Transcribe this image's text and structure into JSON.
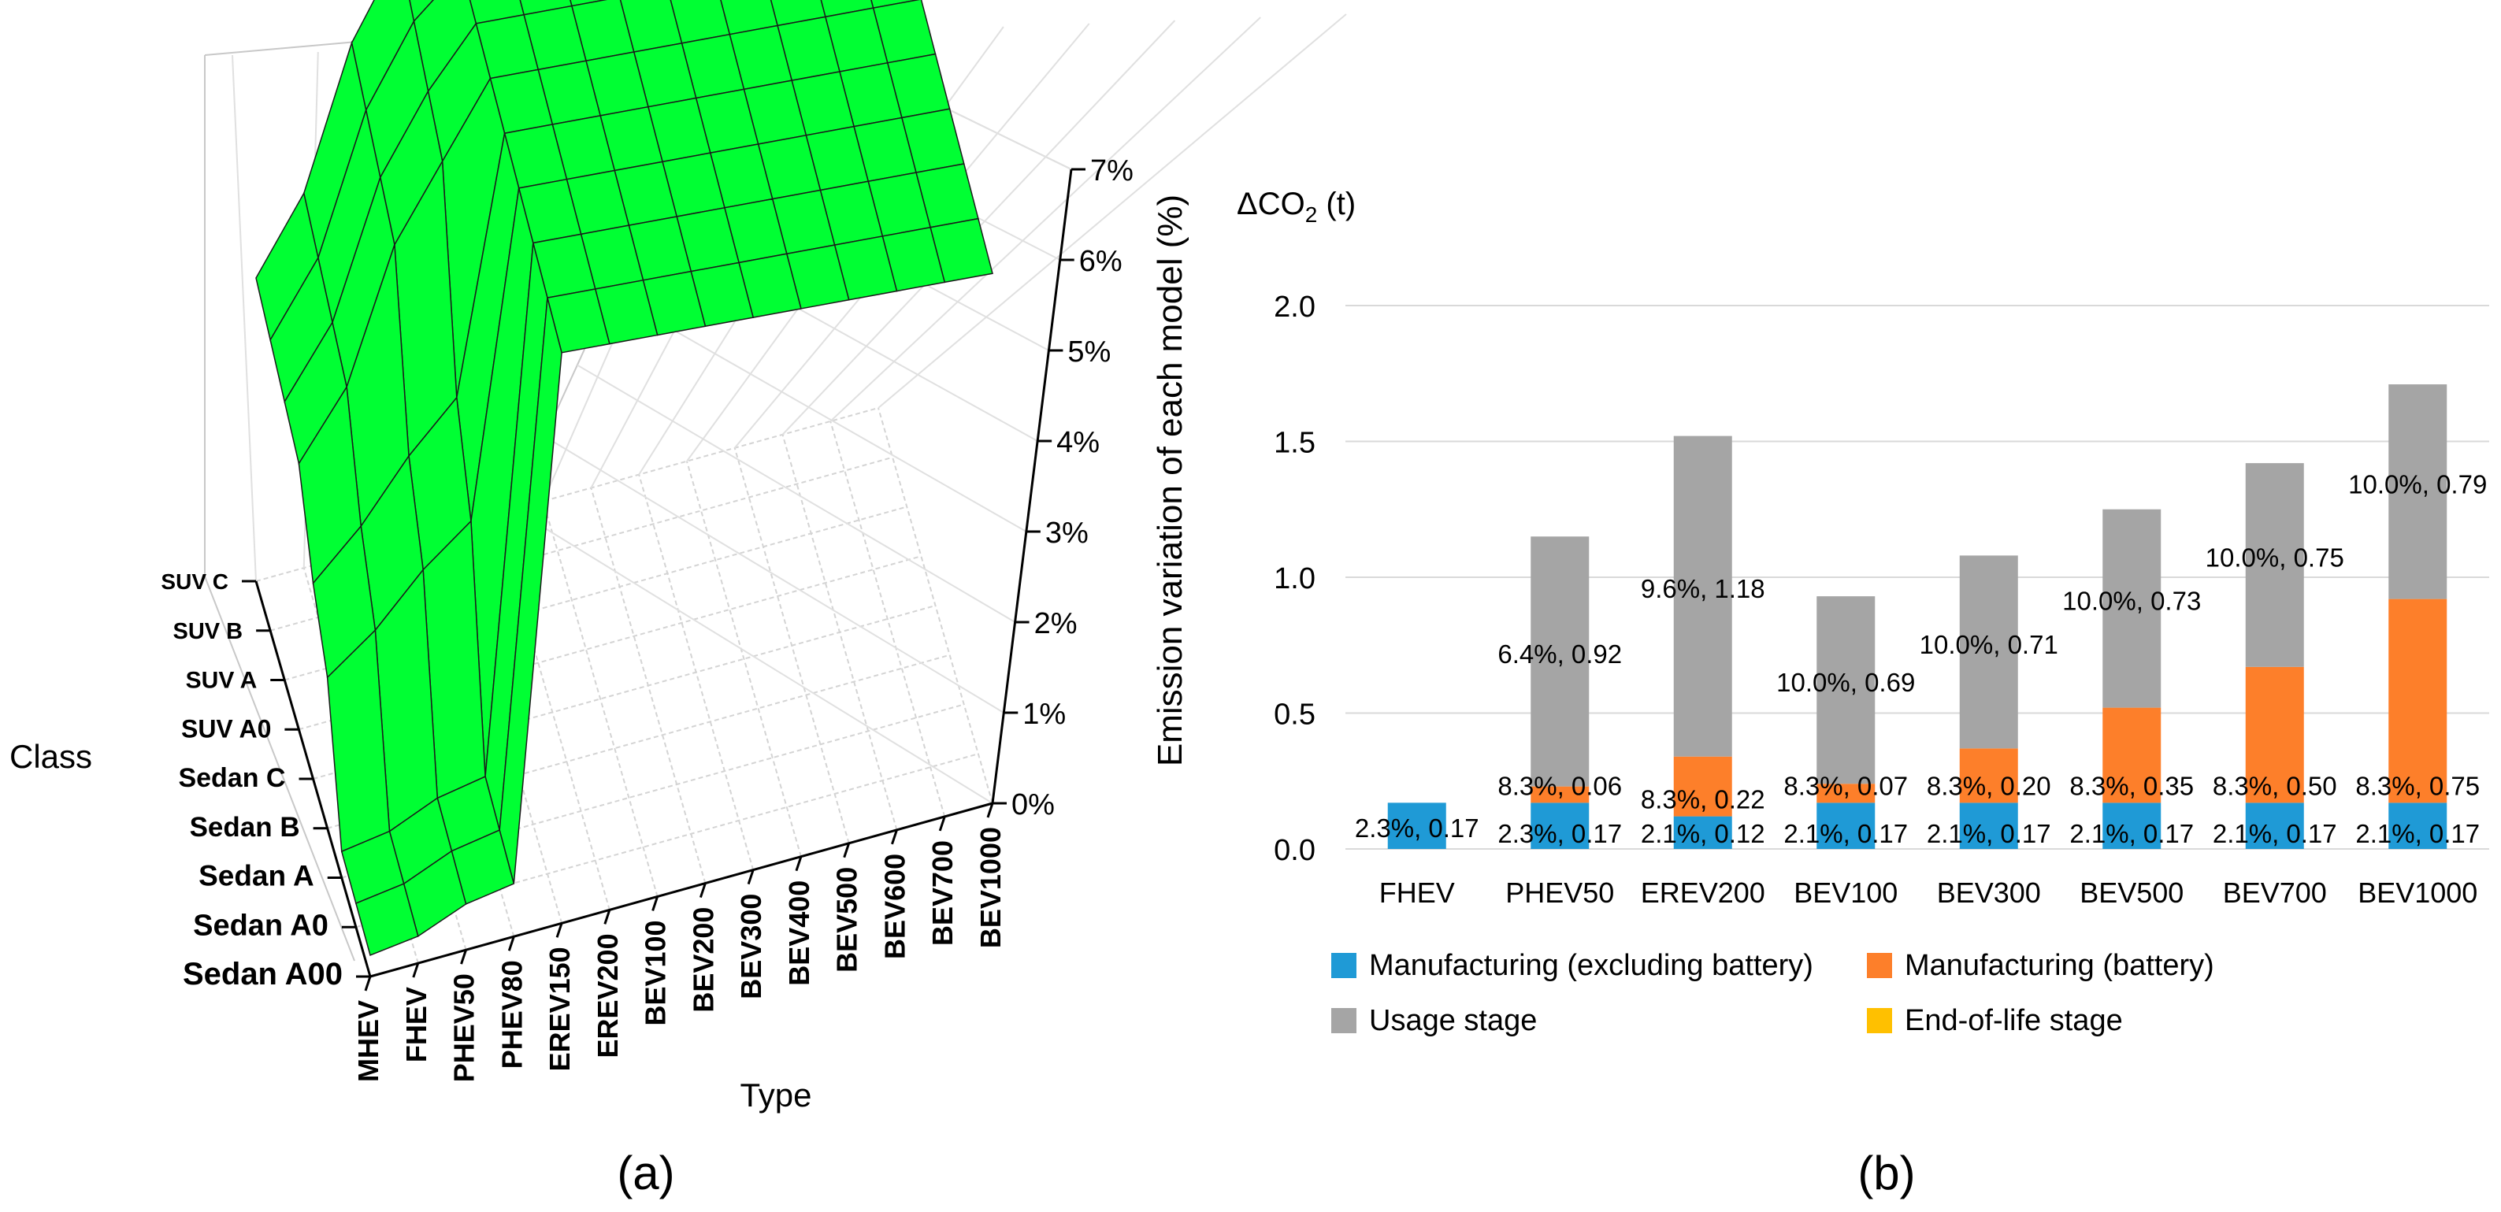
{
  "panel_a": {
    "label": "(a)",
    "chart_data": {
      "type": "surface3d",
      "zlabel": "Emission variation of each model (%)",
      "xlabel": "Type",
      "ylabel": "Class",
      "z_ticks": [
        "0%",
        "1%",
        "2%",
        "3%",
        "4%",
        "5%",
        "6%",
        "7%"
      ],
      "zlim": [
        0,
        7
      ],
      "types": [
        "MHEV",
        "FHEV",
        "PHEV50",
        "PHEV80",
        "EREV150",
        "EREV200",
        "BEV100",
        "BEV200",
        "BEV300",
        "BEV400",
        "BEV500",
        "BEV600",
        "BEV700",
        "BEV1000"
      ],
      "classes": [
        "Sedan A00",
        "Sedan A0",
        "Sedan A",
        "Sedan B",
        "Sedan C",
        "SUV A0",
        "SUV A",
        "SUV B",
        "SUV C"
      ],
      "surface_color": "#00ff33"
    }
  },
  "panel_b": {
    "label": "(b)",
    "chart_data": {
      "type": "bar",
      "stacked": true,
      "ylabel": "ΔCO₂ (t)",
      "ylabel_main": "ΔCO",
      "ylabel_sub": "2",
      "ylabel_unit": " (t)",
      "ylim": [
        0,
        2.0
      ],
      "y_ticks": [
        "0.0",
        "0.5",
        "1.0",
        "1.5",
        "2.0"
      ],
      "categories": [
        "FHEV",
        "PHEV50",
        "EREV200",
        "BEV100",
        "BEV300",
        "BEV500",
        "BEV700",
        "BEV1000"
      ],
      "series": [
        {
          "name": "Manufacturing (excluding battery)",
          "color": "#1f9ad6",
          "values": [
            0.17,
            0.17,
            0.12,
            0.17,
            0.17,
            0.17,
            0.17,
            0.17
          ],
          "labels": [
            "2.3%, 0.17",
            "2.3%, 0.17",
            "2.1%, 0.12",
            "2.1%, 0.17",
            "2.1%, 0.17",
            "2.1%, 0.17",
            "2.1%, 0.17",
            "2.1%, 0.17"
          ]
        },
        {
          "name": "Manufacturing (battery)",
          "color": "#fd7f2a",
          "values": [
            0,
            0.06,
            0.22,
            0.07,
            0.2,
            0.35,
            0.5,
            0.75
          ],
          "labels": [
            "",
            "8.3%, 0.06",
            "8.3%, 0.22",
            "8.3%, 0.07",
            "8.3%, 0.20",
            "8.3%, 0.35",
            "8.3%, 0.50",
            "8.3%, 0.75"
          ]
        },
        {
          "name": "Usage stage",
          "color": "#a5a5a5",
          "values": [
            0,
            0.92,
            1.18,
            0.69,
            0.71,
            0.73,
            0.75,
            0.79
          ],
          "labels": [
            "",
            "6.4%, 0.92",
            "9.6%, 1.18",
            "10.0%, 0.69",
            "10.0%, 0.71",
            "10.0%, 0.73",
            "10.0%, 0.75",
            "10.0%, 0.79"
          ]
        },
        {
          "name": "End-of-life stage",
          "color": "#ffc000",
          "values": [
            0,
            0,
            0,
            0,
            0,
            0,
            0,
            0
          ],
          "labels": [
            "",
            "",
            "",
            "",
            "",
            "",
            "",
            ""
          ]
        }
      ],
      "legend": [
        "Manufacturing (excluding battery)",
        "Manufacturing (battery)",
        "Usage stage",
        "End-of-life stage"
      ]
    }
  }
}
